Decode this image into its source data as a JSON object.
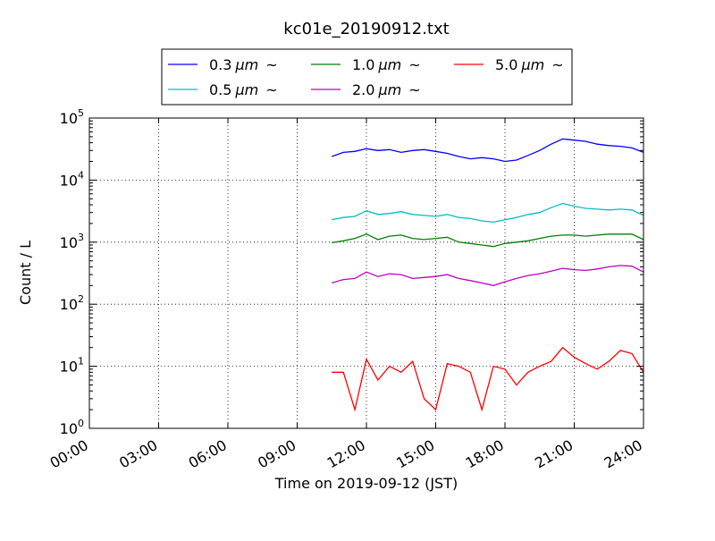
{
  "chart_data": {
    "type": "line",
    "title": "kc01e_20190912.txt",
    "xlabel": "Time on 2019-09-12 (JST)",
    "ylabel": "Count / L",
    "yscale": "log",
    "xlim": [
      "00:00",
      "24:00"
    ],
    "ylim": [
      1,
      100000
    ],
    "xticks": [
      "00:00",
      "03:00",
      "06:00",
      "09:00",
      "12:00",
      "15:00",
      "18:00",
      "21:00",
      "24:00"
    ],
    "yticks": [
      {
        "base": "10",
        "exp": "0"
      },
      {
        "base": "10",
        "exp": "1"
      },
      {
        "base": "10",
        "exp": "2"
      },
      {
        "base": "10",
        "exp": "3"
      },
      {
        "base": "10",
        "exp": "4"
      },
      {
        "base": "10",
        "exp": "5"
      }
    ],
    "grid": true,
    "legend_position": "top, above plot",
    "x": [
      "10:30",
      "11:00",
      "11:30",
      "12:00",
      "12:30",
      "13:00",
      "13:30",
      "14:00",
      "14:30",
      "15:00",
      "15:30",
      "16:00",
      "16:30",
      "17:00",
      "17:30",
      "18:00",
      "18:30",
      "19:00",
      "19:30",
      "20:00",
      "20:30",
      "21:00",
      "21:30",
      "22:00",
      "22:30",
      "23:00",
      "23:30",
      "24:00"
    ],
    "series": [
      {
        "name": "0.3",
        "unit": "μm",
        "suffix": "~",
        "color": "#0000ff",
        "values": [
          24000,
          28000,
          29000,
          32000,
          30000,
          31000,
          28000,
          30000,
          31000,
          29000,
          27000,
          24000,
          22000,
          23000,
          22000,
          20000,
          21000,
          25000,
          30000,
          38000,
          46000,
          44000,
          42000,
          38000,
          36000,
          35000,
          33000,
          28000
        ]
      },
      {
        "name": "0.5",
        "unit": "μm",
        "suffix": "~",
        "color": "#00bfbf",
        "values": [
          2300,
          2500,
          2600,
          3200,
          2800,
          2900,
          3100,
          2800,
          2700,
          2600,
          2800,
          2500,
          2400,
          2200,
          2100,
          2300,
          2500,
          2800,
          3000,
          3600,
          4200,
          3800,
          3500,
          3400,
          3300,
          3400,
          3300,
          2700
        ]
      },
      {
        "name": "1.0",
        "unit": "μm",
        "suffix": "~",
        "color": "#008000",
        "values": [
          980,
          1050,
          1150,
          1350,
          1100,
          1250,
          1300,
          1150,
          1100,
          1150,
          1200,
          1000,
          950,
          900,
          850,
          950,
          1000,
          1050,
          1150,
          1250,
          1300,
          1300,
          1250,
          1300,
          1350,
          1350,
          1350,
          1100
        ]
      },
      {
        "name": "2.0",
        "unit": "μm",
        "suffix": "~",
        "color": "#bf00bf",
        "values": [
          220,
          250,
          260,
          330,
          280,
          310,
          300,
          260,
          270,
          280,
          300,
          260,
          240,
          220,
          200,
          230,
          260,
          290,
          310,
          340,
          380,
          360,
          350,
          370,
          400,
          420,
          410,
          330
        ]
      },
      {
        "name": "5.0",
        "unit": "μm",
        "suffix": "~",
        "color": "#ff0000",
        "values": [
          8,
          8,
          2,
          13,
          6,
          10,
          8,
          12,
          3,
          2,
          11,
          10,
          8,
          2,
          10,
          9,
          5,
          8,
          10,
          12,
          20,
          14,
          11,
          9,
          12,
          18,
          16,
          8
        ]
      }
    ]
  }
}
